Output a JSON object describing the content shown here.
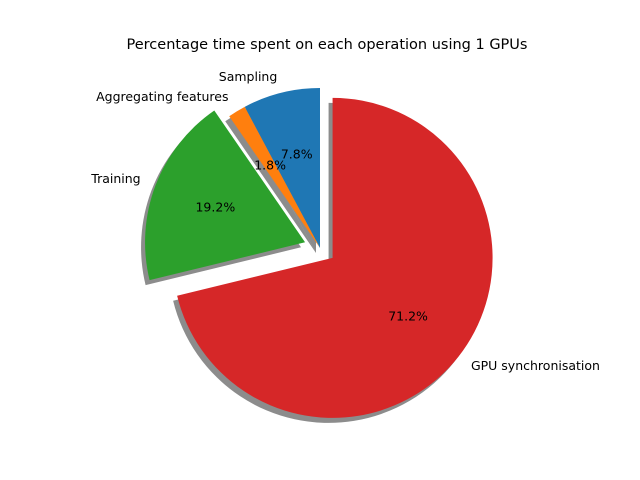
{
  "chart_data": {
    "type": "pie",
    "title": "Percentage time spent on each operation using 1 GPUs",
    "slices": [
      {
        "label": "Sampling",
        "value": 7.8,
        "pct_label": "7.8%",
        "color": "#1f77b4",
        "exploded": false
      },
      {
        "label": "Aggregating features",
        "value": 1.8,
        "pct_label": "1.8%",
        "color": "#ff7f0e",
        "exploded": false
      },
      {
        "label": "Training",
        "value": 19.2,
        "pct_label": "19.2%",
        "color": "#2ca02c",
        "exploded": true
      },
      {
        "label": "GPU synchronisation",
        "value": 71.2,
        "pct_label": "71.2%",
        "color": "#d62728",
        "exploded": true
      }
    ],
    "start_angle_deg": 90,
    "direction": "counterclockwise",
    "shadow": true
  }
}
